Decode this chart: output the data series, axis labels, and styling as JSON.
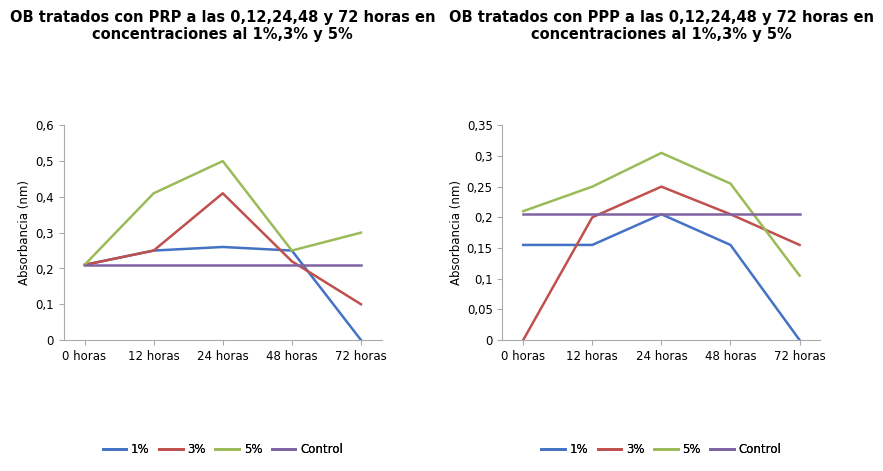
{
  "title_prp": "OB tratados con PRP a las 0,12,24,48 y 72 horas en\nconcentraciones al 1%,3% y 5%",
  "title_ppp": "OB tratados con PPP a las 0,12,24,48 y 72 horas en\nconcentraciones al 1%,3% y 5%",
  "ylabel": "Absorbancia (nm)",
  "xtick_labels": [
    "0 horas",
    "12 horas",
    "24 horas",
    "48 horas",
    "72 horas"
  ],
  "prp": {
    "one_pct": [
      0.21,
      0.25,
      0.26,
      0.25,
      0.0
    ],
    "three_pct": [
      0.21,
      0.25,
      0.41,
      0.22,
      0.1
    ],
    "five_pct": [
      0.21,
      0.41,
      0.5,
      0.25,
      0.3
    ],
    "control": [
      0.21,
      0.21,
      0.21,
      0.21,
      0.21
    ]
  },
  "ppp": {
    "one_pct": [
      0.155,
      0.155,
      0.205,
      0.155,
      0.0
    ],
    "three_pct": [
      0.0,
      0.2,
      0.25,
      0.205,
      0.155
    ],
    "five_pct": [
      0.21,
      0.25,
      0.305,
      0.255,
      0.105
    ],
    "control": [
      0.205,
      0.205,
      0.205,
      0.205,
      0.205
    ]
  },
  "prp_ylim": [
    0,
    0.6
  ],
  "prp_yticks": [
    0,
    0.1,
    0.2,
    0.3,
    0.4,
    0.5,
    0.6
  ],
  "ppp_ylim": [
    0,
    0.35
  ],
  "ppp_yticks": [
    0,
    0.05,
    0.1,
    0.15,
    0.2,
    0.25,
    0.3,
    0.35
  ],
  "color_1pct": "#4472c4",
  "color_3pct": "#c0504d",
  "color_5pct": "#9bbb59",
  "color_control": "#8064a2",
  "bg_color": "#ffffff",
  "title_fontsize": 10.5,
  "axis_fontsize": 8.5,
  "legend_fontsize": 8.5
}
